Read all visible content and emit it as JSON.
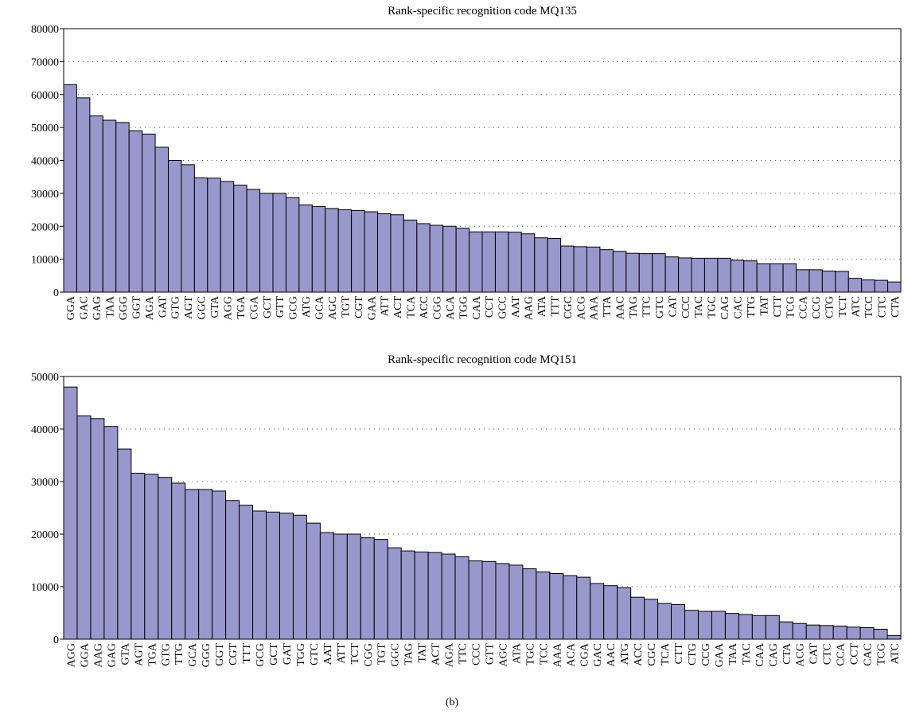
{
  "chart_data": [
    {
      "type": "bar",
      "title": "Rank-specific recognition code MQ135",
      "color": "#9898cc",
      "grid": true,
      "ylim": [
        0,
        80000
      ],
      "yticks": [
        0,
        10000,
        20000,
        30000,
        40000,
        50000,
        60000,
        70000,
        80000
      ],
      "categories": [
        "GGA",
        "GAC",
        "GAG",
        "TAA",
        "GGG",
        "GGT",
        "AGA",
        "GAT",
        "GTG",
        "AGT",
        "GGC",
        "GTA",
        "AGG",
        "TGA",
        "CGA",
        "GCT",
        "GTT",
        "GCG",
        "ATG",
        "GCA",
        "AGC",
        "TGT",
        "CGT",
        "GAA",
        "ATT",
        "ACT",
        "TCA",
        "ACC",
        "CGG",
        "ACA",
        "TGG",
        "CAA",
        "CCT",
        "GCC",
        "AAT",
        "AAG",
        "ATA",
        "TTT",
        "CGC",
        "ACG",
        "AAA",
        "TTA",
        "AAC",
        "TAG",
        "TTC",
        "GTC",
        "CAT",
        "CCC",
        "TAC",
        "TGC",
        "CAG",
        "CAC",
        "TTG",
        "TAT",
        "CTT",
        "TCG",
        "CCA",
        "CCG",
        "CTG",
        "TCT",
        "ATC",
        "TCC",
        "CTC",
        "CTA"
      ],
      "values": [
        63000,
        59000,
        53500,
        52200,
        51500,
        49000,
        48000,
        44000,
        40000,
        38700,
        34700,
        34600,
        33600,
        32500,
        31200,
        30000,
        30000,
        28700,
        26500,
        26000,
        25400,
        25000,
        24800,
        24400,
        23800,
        23500,
        21900,
        20800,
        20300,
        20000,
        19400,
        18300,
        18300,
        18300,
        18200,
        17700,
        16500,
        16300,
        14000,
        13800,
        13700,
        12900,
        12400,
        11800,
        11700,
        11700,
        10700,
        10400,
        10300,
        10300,
        10300,
        9700,
        9500,
        8600,
        8600,
        8600,
        6800,
        6800,
        6400,
        6300,
        4200,
        3700,
        3600,
        3100
      ]
    },
    {
      "type": "bar",
      "title": "Rank-specific recognition code MQ151",
      "color": "#9898cc",
      "grid": true,
      "ylim": [
        0,
        50000
      ],
      "yticks": [
        0,
        10000,
        20000,
        30000,
        40000,
        50000
      ],
      "categories": [
        "AGG",
        "GGA",
        "AAG",
        "GAG",
        "GTA",
        "AGT",
        "TGA",
        "GTG",
        "TTG",
        "GCA",
        "GGG",
        "GGT",
        "CGT",
        "TTT",
        "GCG",
        "GCT",
        "GAT",
        "TGG",
        "GTC",
        "AAT",
        "ATT",
        "TCT",
        "CGG",
        "TGT",
        "GGC",
        "TAG",
        "TAT",
        "ACT",
        "AGA",
        "TTC",
        "CCC",
        "GTT",
        "AGC",
        "ATA",
        "TGC",
        "TCC",
        "AAA",
        "ACA",
        "CGA",
        "GAC",
        "AAC",
        "ATG",
        "ACC",
        "CGC",
        "TCA",
        "CTT",
        "CTG",
        "CCG",
        "GAA",
        "TAA",
        "TAC",
        "CAA",
        "CAG",
        "CTA",
        "ACG",
        "CAT",
        "CTC",
        "CCA",
        "CCT",
        "CAC",
        "TCG",
        "ATC"
      ],
      "values": [
        48000,
        42500,
        42000,
        40500,
        36200,
        31600,
        31400,
        30800,
        29700,
        28500,
        28500,
        28200,
        26400,
        25500,
        24400,
        24200,
        24000,
        23600,
        22100,
        20300,
        20000,
        20000,
        19300,
        19000,
        17400,
        16800,
        16600,
        16500,
        16200,
        15700,
        14900,
        14800,
        14400,
        14100,
        13400,
        12800,
        12500,
        12100,
        11800,
        10600,
        10200,
        9800,
        8000,
        7600,
        6800,
        6600,
        5500,
        5300,
        5300,
        4900,
        4700,
        4500,
        4500,
        3300,
        3000,
        2700,
        2600,
        2500,
        2300,
        2200,
        1900,
        700
      ]
    }
  ],
  "caption": "(b)"
}
